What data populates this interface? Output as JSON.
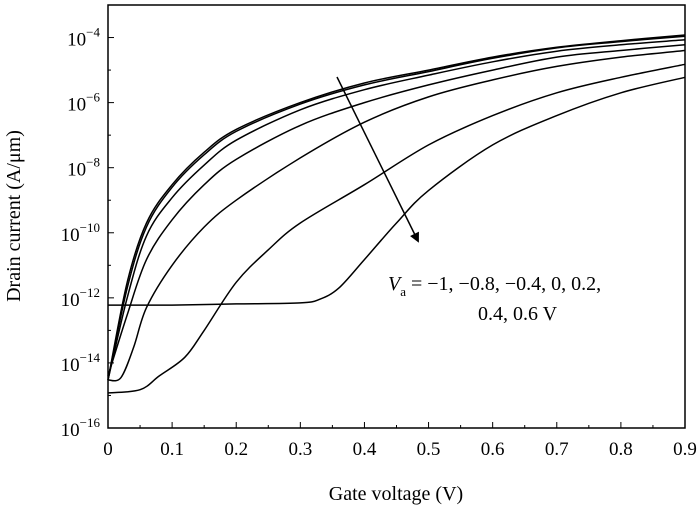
{
  "chart_data": {
    "type": "line",
    "xlabel": "Gate voltage (V)",
    "ylabel": "Drain current (A/μm)",
    "xlim": [
      0,
      0.9
    ],
    "ylim": [
      1e-16,
      0.001
    ],
    "yscale": "log",
    "grid": false,
    "x_ticks": [
      "0",
      "0.1",
      "0.2",
      "0.3",
      "0.4",
      "0.5",
      "0.6",
      "0.7",
      "0.8",
      "0.9"
    ],
    "y_ticks": [
      {
        "base": "10",
        "exp": "−16",
        "value": 1e-16
      },
      {
        "base": "10",
        "exp": "−14",
        "value": 1e-14
      },
      {
        "base": "10",
        "exp": "−12",
        "value": 1e-12
      },
      {
        "base": "10",
        "exp": "−10",
        "value": 1e-10
      },
      {
        "base": "10",
        "exp": "−8",
        "value": 1e-08
      },
      {
        "base": "10",
        "exp": "−6",
        "value": 1e-06
      },
      {
        "base": "10",
        "exp": "−4",
        "value": 0.0001
      }
    ],
    "annotation": {
      "var": "V",
      "sub": "a",
      "line1": " = −1, −0.8, −0.4, 0, 0.2,",
      "line2": "0.4, 0.6 V"
    },
    "series": [
      {
        "x": [
          0,
          0.03,
          0.06,
          0.1,
          0.15,
          0.2,
          0.3,
          0.4,
          0.5,
          0.6,
          0.7,
          0.8,
          0.9
        ],
        "y": [
          3e-15,
          3e-12,
          2e-10,
          3e-09,
          3e-08,
          1.5e-07,
          1e-06,
          4e-06,
          1e-05,
          2.5e-05,
          5e-05,
          8e-05,
          0.00012
        ]
      },
      {
        "x": [
          0,
          0.03,
          0.06,
          0.1,
          0.15,
          0.2,
          0.3,
          0.4,
          0.5,
          0.6,
          0.7,
          0.8,
          0.9
        ],
        "y": [
          3e-15,
          2e-12,
          1.5e-10,
          2.5e-09,
          2.5e-08,
          1.3e-07,
          9e-07,
          3.5e-06,
          9e-06,
          2.3e-05,
          4.8e-05,
          7.5e-05,
          0.00011
        ]
      },
      {
        "x": [
          0,
          0.03,
          0.06,
          0.1,
          0.15,
          0.2,
          0.3,
          0.4,
          0.5,
          0.6,
          0.7,
          0.8,
          0.9
        ],
        "y": [
          3e-15,
          1e-12,
          8e-11,
          1.2e-09,
          1.2e-08,
          7e-08,
          6e-07,
          2.5e-06,
          7e-06,
          1.8e-05,
          3.8e-05,
          6e-05,
          8.5e-05
        ]
      },
      {
        "x": [
          0,
          0.03,
          0.06,
          0.1,
          0.15,
          0.2,
          0.3,
          0.4,
          0.5,
          0.6,
          0.7,
          0.8,
          0.9
        ],
        "y": [
          4e-15,
          3e-13,
          1.5e-11,
          2.5e-10,
          3e-09,
          1.8e-08,
          2e-07,
          1e-06,
          3.5e-06,
          1e-05,
          2.5e-05,
          4e-05,
          6e-05
        ]
      },
      {
        "x": [
          0,
          0.02,
          0.04,
          0.06,
          0.1,
          0.15,
          0.2,
          0.3,
          0.4,
          0.5,
          0.6,
          0.7,
          0.8,
          0.9
        ],
        "y": [
          3e-15,
          3.5e-15,
          3e-14,
          5e-13,
          1e-11,
          1.5e-10,
          1e-09,
          2e-08,
          2.5e-07,
          1.5e-06,
          5e-06,
          1.3e-05,
          2.5e-05,
          4e-05
        ]
      },
      {
        "x": [
          0,
          0.05,
          0.08,
          0.12,
          0.15,
          0.2,
          0.25,
          0.3,
          0.4,
          0.5,
          0.6,
          0.7,
          0.8,
          0.9
        ],
        "y": [
          1.2e-15,
          1.5e-15,
          4e-15,
          1.5e-14,
          1e-13,
          3e-12,
          3e-11,
          2e-10,
          3e-09,
          5e-08,
          4e-07,
          2e-06,
          6e-06,
          1.5e-05
        ]
      },
      {
        "x": [
          0,
          0.05,
          0.1,
          0.2,
          0.3,
          0.33,
          0.36,
          0.4,
          0.45,
          0.5,
          0.6,
          0.7,
          0.8,
          0.9
        ],
        "y": [
          6e-13,
          6e-13,
          6e-13,
          6.5e-13,
          7e-13,
          9e-13,
          2e-12,
          1.5e-11,
          2e-10,
          2e-09,
          5e-08,
          4e-07,
          2e-06,
          6e-06
        ]
      }
    ]
  }
}
